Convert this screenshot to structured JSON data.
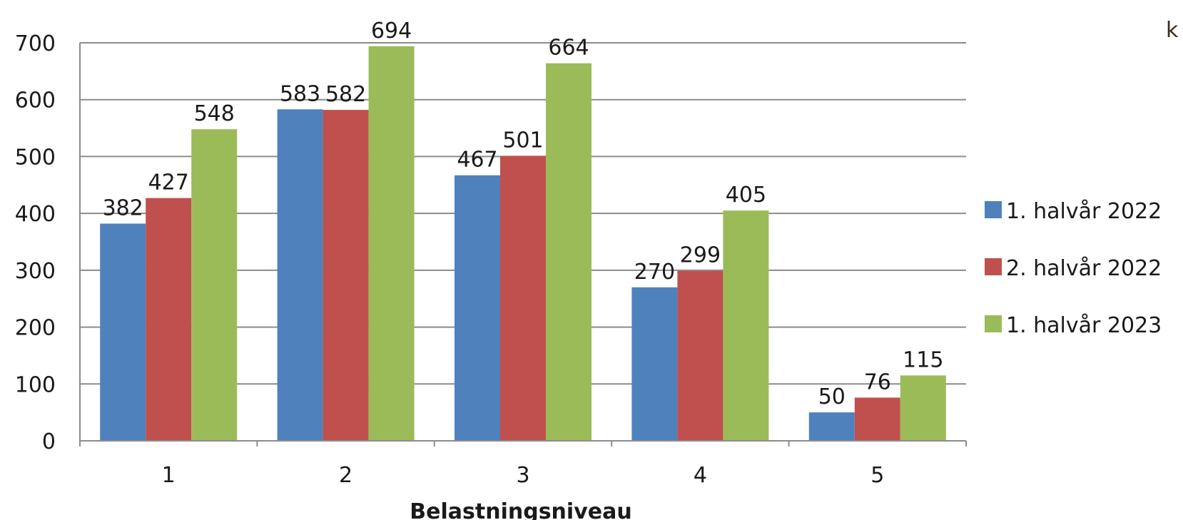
{
  "corner_text": "k",
  "chart_data": {
    "type": "bar",
    "categories": [
      "1",
      "2",
      "3",
      "4",
      "5"
    ],
    "series": [
      {
        "name": "1. halvår 2022",
        "values": [
          382,
          583,
          467,
          270,
          50
        ],
        "color": "#4f81bd"
      },
      {
        "name": "2. halvår 2022",
        "values": [
          427,
          582,
          501,
          299,
          76
        ],
        "color": "#c0504d"
      },
      {
        "name": "1. halvår 2023",
        "values": [
          548,
          694,
          664,
          405,
          115
        ],
        "color": "#9bbb59"
      }
    ],
    "xlabel": "Belastningsniveau",
    "ylim": [
      0,
      700
    ],
    "yticks": [
      "0",
      "100",
      "200",
      "300",
      "400",
      "500",
      "600",
      "700"
    ],
    "grid": true,
    "legend_position": "right"
  }
}
